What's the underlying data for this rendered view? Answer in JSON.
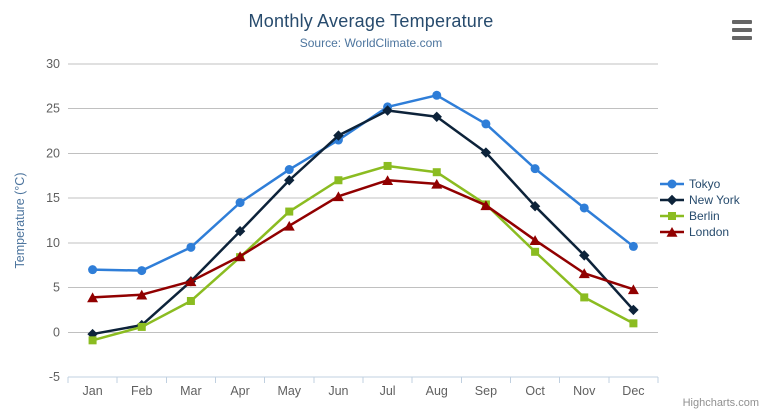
{
  "header": {
    "title": "Monthly Average Temperature",
    "subtitle": "Source: WorldClimate.com"
  },
  "credits": {
    "label": "Highcharts.com"
  },
  "menu": {
    "icon": "hamburger-icon"
  },
  "chart_data": {
    "type": "line",
    "title": "Monthly Average Temperature",
    "subtitle": "Source: WorldClimate.com",
    "categories": [
      "Jan",
      "Feb",
      "Mar",
      "Apr",
      "May",
      "Jun",
      "Jul",
      "Aug",
      "Sep",
      "Oct",
      "Nov",
      "Dec"
    ],
    "series": [
      {
        "name": "Tokyo",
        "color": "#2f7ed8",
        "marker": "circle",
        "values": [
          7.0,
          6.9,
          9.5,
          14.5,
          18.2,
          21.5,
          25.2,
          26.5,
          23.3,
          18.3,
          13.9,
          9.6
        ]
      },
      {
        "name": "New York",
        "color": "#0d233a",
        "marker": "diamond",
        "values": [
          -0.2,
          0.8,
          5.7,
          11.3,
          17.0,
          22.0,
          24.8,
          24.1,
          20.1,
          14.1,
          8.6,
          2.5
        ]
      },
      {
        "name": "Berlin",
        "color": "#8bbc21",
        "marker": "square",
        "values": [
          -0.9,
          0.6,
          3.5,
          8.4,
          13.5,
          17.0,
          18.6,
          17.9,
          14.3,
          9.0,
          3.9,
          1.0
        ]
      },
      {
        "name": "London",
        "color": "#910000",
        "marker": "triangle",
        "values": [
          3.9,
          4.2,
          5.7,
          8.5,
          11.9,
          15.2,
          17.0,
          16.6,
          14.2,
          10.3,
          6.6,
          4.8
        ]
      }
    ],
    "xlabel": "",
    "ylabel": "Temperature (°C)",
    "ylim": [
      -5,
      30
    ],
    "ytick_step": 5,
    "yticks": [
      -5,
      0,
      5,
      10,
      15,
      20,
      25,
      30
    ],
    "grid": true,
    "legend_position": "right"
  },
  "theme": {
    "background": "#ffffff",
    "title_color": "#274b6d",
    "subtitle_color": "#4d759e",
    "axis_label_color": "#606060",
    "axis_title_color": "#4d759e",
    "legend_text_color": "#274b6d",
    "credits_color": "#909090",
    "grid_color": "#c0c0c0",
    "axis_line_color": "#c0d0e0",
    "menu_icon_color": "#666666"
  }
}
